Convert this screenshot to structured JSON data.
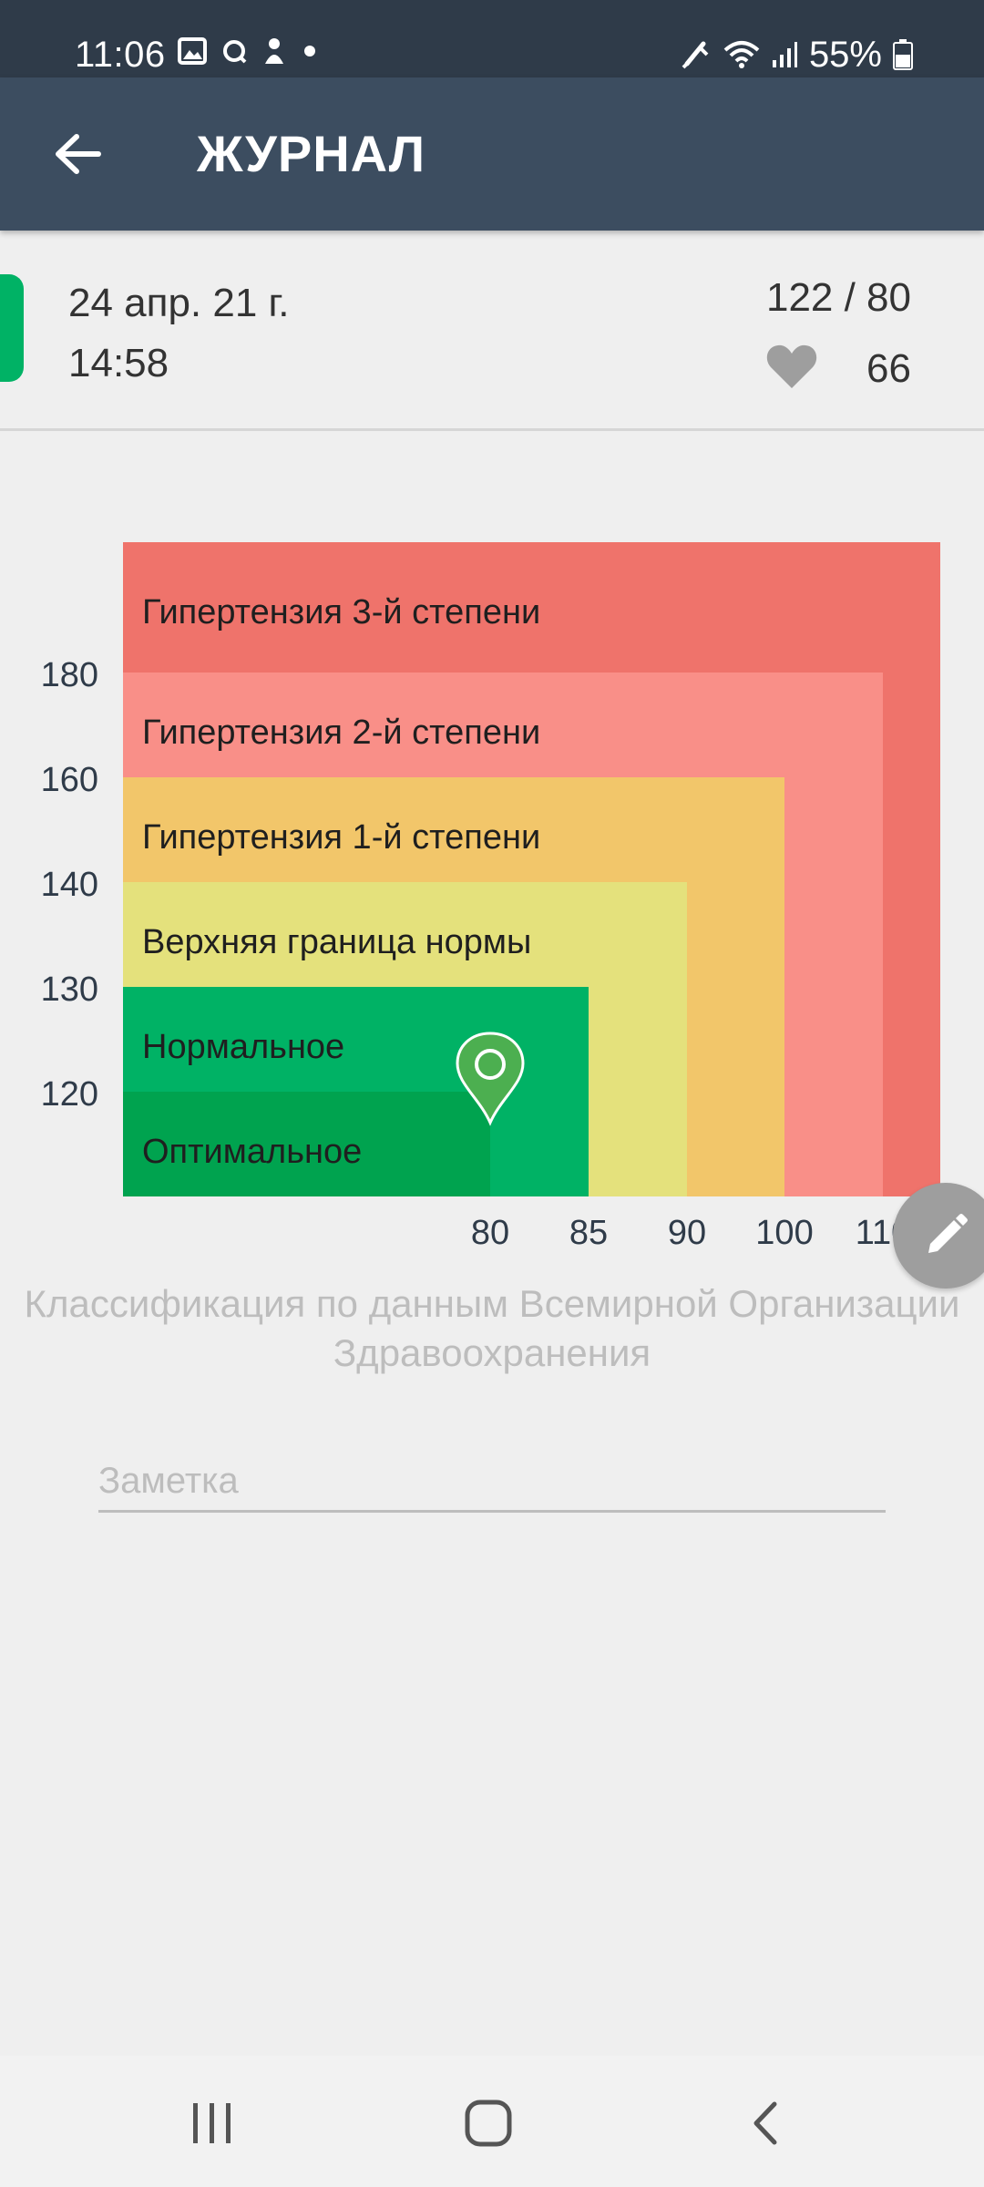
{
  "status_bar": {
    "time": "11:06",
    "battery": "55%"
  },
  "app_bar": {
    "title": "ЖУРНАЛ"
  },
  "entry": {
    "date": "24 апр. 21 г.",
    "time": "14:58",
    "pressure": "122 / 80",
    "pulse": "66",
    "status_color": "#00b265"
  },
  "chart_data": {
    "type": "heatmap",
    "title": "",
    "xlabel": "",
    "ylabel": "",
    "x_ticks": [
      "80",
      "85",
      "90",
      "100",
      "110"
    ],
    "y_ticks": [
      "180",
      "160",
      "140",
      "130",
      "120"
    ],
    "zones": [
      {
        "label": "Гипертензия 3-й степени",
        "systolic_min": 180,
        "diastolic_min": 110,
        "color": "#ef736b"
      },
      {
        "label": "Гипертензия 2-й степени",
        "systolic_max": 180,
        "diastolic_max": 110,
        "color": "#f98f88"
      },
      {
        "label": "Гипертензия 1-й степени",
        "systolic_max": 160,
        "diastolic_max": 100,
        "color": "#f2c66a"
      },
      {
        "label": "Верхняя граница нормы",
        "systolic_max": 140,
        "diastolic_max": 90,
        "color": "#e4e17c"
      },
      {
        "label": "Нормальное",
        "systolic_max": 130,
        "diastolic_max": 85,
        "color": "#00b265"
      },
      {
        "label": "Оптимальное",
        "systolic_max": 120,
        "diastolic_max": 80,
        "color": "#00a34f"
      }
    ],
    "marker": {
      "systolic": 122,
      "diastolic": 80,
      "color": "#4caf50"
    }
  },
  "caption": "Классификация по данным Всемирной Организации Здравоохранения",
  "note": {
    "placeholder": "Заметка",
    "value": ""
  }
}
